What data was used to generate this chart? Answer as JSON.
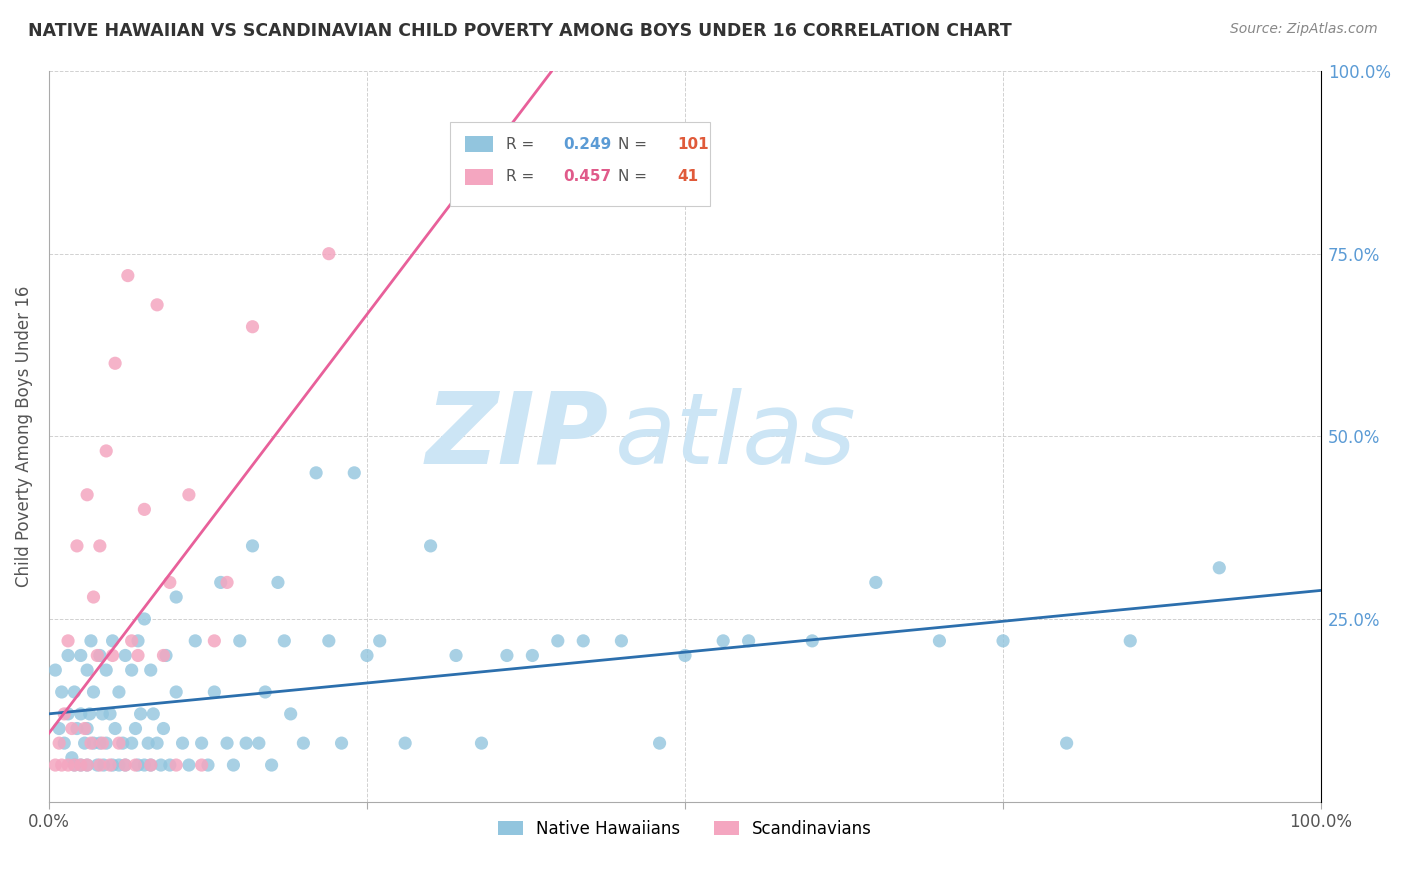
{
  "title": "NATIVE HAWAIIAN VS SCANDINAVIAN CHILD POVERTY AMONG BOYS UNDER 16 CORRELATION CHART",
  "source": "Source: ZipAtlas.com",
  "ylabel": "Child Poverty Among Boys Under 16",
  "ytick_labels": [
    "",
    "25.0%",
    "50.0%",
    "75.0%",
    "100.0%"
  ],
  "blue_R": 0.249,
  "blue_N": 101,
  "pink_R": 0.457,
  "pink_N": 41,
  "blue_color": "#92c5de",
  "pink_color": "#f4a6c0",
  "blue_line_color": "#2c6fad",
  "pink_line_color": "#e8609a",
  "legend_blue_label": "Native Hawaiians",
  "legend_pink_label": "Scandinavians",
  "watermark_zip": "ZIP",
  "watermark_atlas": "atlas",
  "watermark_color": "#cce5f5",
  "background_color": "#ffffff",
  "blue_scatter_x": [
    0.005,
    0.008,
    0.01,
    0.012,
    0.015,
    0.015,
    0.018,
    0.02,
    0.02,
    0.022,
    0.025,
    0.025,
    0.025,
    0.028,
    0.03,
    0.03,
    0.03,
    0.032,
    0.033,
    0.035,
    0.035,
    0.038,
    0.04,
    0.04,
    0.042,
    0.043,
    0.045,
    0.045,
    0.048,
    0.05,
    0.05,
    0.052,
    0.055,
    0.055,
    0.058,
    0.06,
    0.06,
    0.065,
    0.065,
    0.068,
    0.07,
    0.07,
    0.072,
    0.075,
    0.075,
    0.078,
    0.08,
    0.08,
    0.082,
    0.085,
    0.088,
    0.09,
    0.092,
    0.095,
    0.1,
    0.1,
    0.105,
    0.11,
    0.115,
    0.12,
    0.125,
    0.13,
    0.135,
    0.14,
    0.145,
    0.15,
    0.155,
    0.16,
    0.165,
    0.17,
    0.175,
    0.18,
    0.185,
    0.19,
    0.2,
    0.21,
    0.22,
    0.23,
    0.24,
    0.25,
    0.26,
    0.28,
    0.3,
    0.32,
    0.34,
    0.36,
    0.38,
    0.4,
    0.42,
    0.45,
    0.48,
    0.5,
    0.53,
    0.55,
    0.6,
    0.65,
    0.7,
    0.75,
    0.8,
    0.85,
    0.92
  ],
  "blue_scatter_y": [
    0.18,
    0.1,
    0.15,
    0.08,
    0.12,
    0.2,
    0.06,
    0.05,
    0.15,
    0.1,
    0.05,
    0.12,
    0.2,
    0.08,
    0.05,
    0.1,
    0.18,
    0.12,
    0.22,
    0.08,
    0.15,
    0.05,
    0.08,
    0.2,
    0.12,
    0.05,
    0.08,
    0.18,
    0.12,
    0.05,
    0.22,
    0.1,
    0.05,
    0.15,
    0.08,
    0.05,
    0.2,
    0.08,
    0.18,
    0.1,
    0.05,
    0.22,
    0.12,
    0.05,
    0.25,
    0.08,
    0.05,
    0.18,
    0.12,
    0.08,
    0.05,
    0.1,
    0.2,
    0.05,
    0.15,
    0.28,
    0.08,
    0.05,
    0.22,
    0.08,
    0.05,
    0.15,
    0.3,
    0.08,
    0.05,
    0.22,
    0.08,
    0.35,
    0.08,
    0.15,
    0.05,
    0.3,
    0.22,
    0.12,
    0.08,
    0.45,
    0.22,
    0.08,
    0.45,
    0.2,
    0.22,
    0.08,
    0.35,
    0.2,
    0.08,
    0.2,
    0.2,
    0.22,
    0.22,
    0.22,
    0.08,
    0.2,
    0.22,
    0.22,
    0.22,
    0.3,
    0.22,
    0.22,
    0.08,
    0.22,
    0.32
  ],
  "pink_scatter_x": [
    0.005,
    0.008,
    0.01,
    0.012,
    0.015,
    0.015,
    0.018,
    0.02,
    0.022,
    0.025,
    0.028,
    0.03,
    0.03,
    0.033,
    0.035,
    0.038,
    0.04,
    0.04,
    0.042,
    0.045,
    0.048,
    0.05,
    0.052,
    0.055,
    0.06,
    0.062,
    0.065,
    0.068,
    0.07,
    0.075,
    0.08,
    0.085,
    0.09,
    0.095,
    0.1,
    0.11,
    0.12,
    0.13,
    0.14,
    0.16,
    0.22
  ],
  "pink_scatter_y": [
    0.05,
    0.08,
    0.05,
    0.12,
    0.05,
    0.22,
    0.1,
    0.05,
    0.35,
    0.05,
    0.1,
    0.05,
    0.42,
    0.08,
    0.28,
    0.2,
    0.05,
    0.35,
    0.08,
    0.48,
    0.05,
    0.2,
    0.6,
    0.08,
    0.05,
    0.72,
    0.22,
    0.05,
    0.2,
    0.4,
    0.05,
    0.68,
    0.2,
    0.3,
    0.05,
    0.42,
    0.05,
    0.22,
    0.3,
    0.65,
    0.75
  ]
}
